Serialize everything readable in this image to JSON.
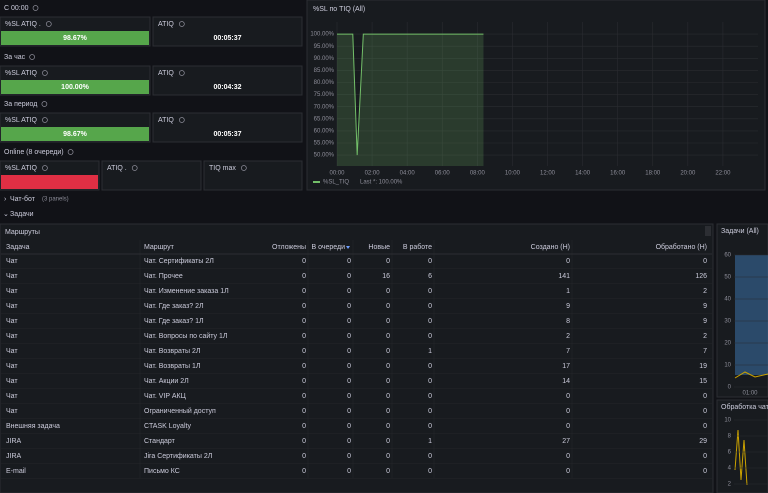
{
  "stat_groups": [
    {
      "label": "С 00:00",
      "panels": [
        {
          "title": "%SL ATIQ .",
          "value": "98.67%",
          "color": "#56a64b"
        },
        {
          "title": "ATIQ",
          "value": "00:05:37"
        }
      ]
    },
    {
      "label": "За час",
      "panels": [
        {
          "title": "%SL ATIQ",
          "value": "100.00%",
          "color": "#56a64b"
        },
        {
          "title": "ATIQ",
          "value": "00:04:32"
        }
      ]
    },
    {
      "label": "За период",
      "panels": [
        {
          "title": "%SL ATIQ",
          "value": "98.67%",
          "color": "#56a64b"
        },
        {
          "title": "ATIQ",
          "value": "00:05:37"
        }
      ]
    },
    {
      "label": "Online (8 очереди)",
      "panels": [
        {
          "title": "%SL ATIQ",
          "color": "#e02f44"
        },
        {
          "title": "ATIQ ."
        },
        {
          "title": "TIQ max"
        }
      ]
    }
  ],
  "chart_data": {
    "type": "line",
    "title": "%SL по TIQ (All)",
    "x": [
      0,
      0.9,
      1.15,
      1.5,
      8.35
    ],
    "xlim": [
      0,
      24
    ],
    "xticks": [
      {
        "value": 0,
        "label": "00:00"
      },
      {
        "value": 2,
        "label": "02:00"
      },
      {
        "value": 4,
        "label": "04:00"
      },
      {
        "value": 6,
        "label": "06:00"
      },
      {
        "value": 8,
        "label": "08:00"
      },
      {
        "value": 10,
        "label": "10:00"
      },
      {
        "value": 12,
        "label": "12:00"
      },
      {
        "value": 14,
        "label": "14:00"
      },
      {
        "value": 16,
        "label": "16:00"
      },
      {
        "value": 18,
        "label": "18:00"
      },
      {
        "value": 20,
        "label": "20:00"
      },
      {
        "value": 22,
        "label": "22:00"
      }
    ],
    "ylim": [
      45.5,
      105
    ],
    "yticks": [
      {
        "value": 100,
        "label": "100.00%"
      },
      {
        "value": 95,
        "label": "95.00%"
      },
      {
        "value": 90,
        "label": "90.00%"
      },
      {
        "value": 85,
        "label": "85.00%"
      },
      {
        "value": 80,
        "label": "80.00%"
      },
      {
        "value": 75,
        "label": "75.00%"
      },
      {
        "value": 70,
        "label": "70.00%"
      },
      {
        "value": 65,
        "label": "65.00%"
      },
      {
        "value": 60,
        "label": "60.00%"
      },
      {
        "value": 55,
        "label": "55.00%"
      },
      {
        "value": 50,
        "label": "50.00%"
      }
    ],
    "series": [
      {
        "name": "%SL_TIQ",
        "color": "#73bf69",
        "values": [
          100,
          100,
          50,
          100,
          100
        ]
      }
    ],
    "legend_last": "Last *: 100.00%",
    "grid": true
  },
  "rows": {
    "chatbot": "Чат-бот",
    "chatbot_panels": "(3 panels)",
    "tasks": "Задачи"
  },
  "table": {
    "title": "Маршруты",
    "columns": [
      "Задача",
      "Маршрут",
      "Отложены",
      "В очереди",
      "Новые",
      "В работе",
      "Создано (Н)",
      "Обработано (Н)"
    ],
    "rows": [
      [
        "Чат",
        "Чат. Сертификаты 2Л",
        0,
        0,
        0,
        0,
        0,
        0
      ],
      [
        "Чат",
        "Чат. Прочее",
        0,
        0,
        16,
        6,
        141,
        126
      ],
      [
        "Чат",
        "Чат. Изменение заказа 1Л",
        0,
        0,
        0,
        0,
        1,
        2
      ],
      [
        "Чат",
        "Чат. Где заказ? 2Л",
        0,
        0,
        0,
        0,
        9,
        9
      ],
      [
        "Чат",
        "Чат. Где заказ? 1Л",
        0,
        0,
        0,
        0,
        8,
        9
      ],
      [
        "Чат",
        "Чат. Вопросы по сайту 1Л",
        0,
        0,
        0,
        0,
        2,
        2
      ],
      [
        "Чат",
        "Чат. Возвраты 2Л",
        0,
        0,
        0,
        1,
        7,
        7
      ],
      [
        "Чат",
        "Чат. Возвраты 1Л",
        0,
        0,
        0,
        0,
        17,
        19
      ],
      [
        "Чат",
        "Чат. Акции 2Л",
        0,
        0,
        0,
        0,
        14,
        15
      ],
      [
        "Чат",
        "Чат. VIP АКЦ",
        0,
        0,
        0,
        0,
        0,
        0
      ],
      [
        "Чат",
        "Ограниченный доступ",
        0,
        0,
        0,
        0,
        0,
        0
      ],
      [
        "Внешняя задача",
        "CTASK Loyalty",
        0,
        0,
        0,
        0,
        0,
        0
      ],
      [
        "JIRA",
        "Стандарт",
        0,
        0,
        0,
        1,
        27,
        29
      ],
      [
        "JIRA",
        "Jira Сертификаты 2Л",
        0,
        0,
        0,
        0,
        0,
        0
      ],
      [
        "E-mail",
        "Письмо КС",
        0,
        0,
        0,
        0,
        0,
        0
      ]
    ]
  },
  "side_panels": [
    {
      "title": "Задачи (All)",
      "ylim": [
        0,
        60
      ],
      "yticks": [
        60,
        50,
        40,
        30,
        20,
        10,
        0
      ],
      "xticks": [
        "01:00"
      ]
    },
    {
      "title": "Обработка чато",
      "ylim": [
        1,
        11
      ],
      "yticks": [
        10,
        8,
        6,
        4,
        2
      ]
    }
  ]
}
